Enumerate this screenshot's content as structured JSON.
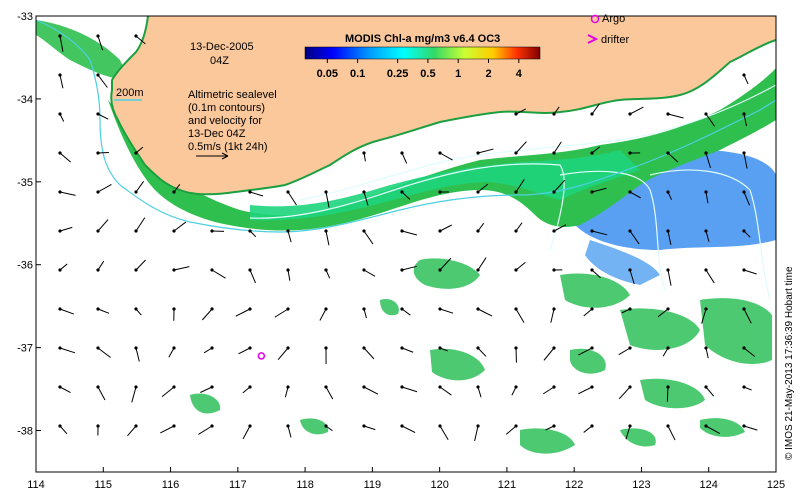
{
  "map": {
    "date_label": "13-Dec-2005",
    "time_label": "04Z",
    "contour_label": "200m",
    "velocity_note": [
      "Altimetric sealevel",
      "(0.1m contours)",
      "and velocity for",
      "13-Dec 04Z",
      "0.5m/s (1kt 24h)"
    ],
    "colorbar": {
      "title": "MODIS Chl-a mg/m3 v6.4 OC3",
      "ticks": [
        "0.05",
        "0.1",
        "0.25",
        "0.5",
        "1",
        "2",
        "4"
      ]
    },
    "legend": {
      "argo_label": "Argo",
      "drifter_label": "drifter"
    },
    "credit": "© IMOS 21-May-2013 17:36:39 Hobart time",
    "x_ticks": [
      "114",
      "115",
      "116",
      "117",
      "118",
      "119",
      "120",
      "121",
      "122",
      "123",
      "124",
      "125"
    ],
    "y_ticks": [
      "-33",
      "-34",
      "-35",
      "-36",
      "-37",
      "-38"
    ],
    "lon_range": [
      114,
      125
    ],
    "lat_range": [
      -38.5,
      -33
    ],
    "argo_position": {
      "lon": 117.35,
      "lat": -37.1
    },
    "colors": {
      "land": "#fbc89c",
      "ocean": "#ffffff",
      "bathymetry": "#4dd0e1",
      "sealevel_contour": "#d9f7f7",
      "argo": "#e600e6",
      "chl_high": "#2db84a",
      "chl_mid": "#1fd27a",
      "chl_low": "#3a8ff0"
    }
  }
}
